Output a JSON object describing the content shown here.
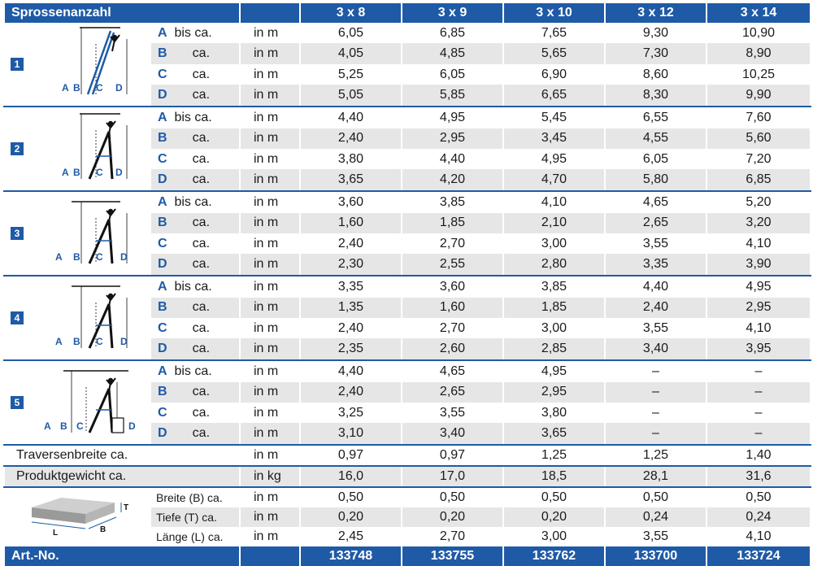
{
  "header": {
    "title": "Sprossenanzahl",
    "columns": [
      "3 x 8",
      "3 x 9",
      "3 x 10",
      "3 x 12",
      "3 x 14"
    ]
  },
  "groups": [
    {
      "badge": "1",
      "rows": [
        {
          "letter": "A",
          "label": " bis ca.",
          "unit": "in m",
          "values": [
            "6,05",
            "6,85",
            "7,65",
            "9,30",
            "10,90"
          ]
        },
        {
          "letter": "B",
          "label": "      ca.",
          "unit": "in m",
          "values": [
            "4,05",
            "4,85",
            "5,65",
            "7,30",
            "8,90"
          ]
        },
        {
          "letter": "C",
          "label": "      ca.",
          "unit": "in m",
          "values": [
            "5,25",
            "6,05",
            "6,90",
            "8,60",
            "10,25"
          ]
        },
        {
          "letter": "D",
          "label": "      ca.",
          "unit": "in m",
          "values": [
            "5,05",
            "5,85",
            "6,65",
            "8,30",
            "9,90"
          ]
        }
      ]
    },
    {
      "badge": "2",
      "rows": [
        {
          "letter": "A",
          "label": " bis ca.",
          "unit": "in m",
          "values": [
            "4,40",
            "4,95",
            "5,45",
            "6,55",
            "7,60"
          ]
        },
        {
          "letter": "B",
          "label": "      ca.",
          "unit": "in m",
          "values": [
            "2,40",
            "2,95",
            "3,45",
            "4,55",
            "5,60"
          ]
        },
        {
          "letter": "C",
          "label": "      ca.",
          "unit": "in m",
          "values": [
            "3,80",
            "4,40",
            "4,95",
            "6,05",
            "7,20"
          ]
        },
        {
          "letter": "D",
          "label": "      ca.",
          "unit": "in m",
          "values": [
            "3,65",
            "4,20",
            "4,70",
            "5,80",
            "6,85"
          ]
        }
      ]
    },
    {
      "badge": "3",
      "rows": [
        {
          "letter": "A",
          "label": " bis ca.",
          "unit": "in m",
          "values": [
            "3,60",
            "3,85",
            "4,10",
            "4,65",
            "5,20"
          ]
        },
        {
          "letter": "B",
          "label": "      ca.",
          "unit": "in m",
          "values": [
            "1,60",
            "1,85",
            "2,10",
            "2,65",
            "3,20"
          ]
        },
        {
          "letter": "C",
          "label": "      ca.",
          "unit": "in m",
          "values": [
            "2,40",
            "2,70",
            "3,00",
            "3,55",
            "4,10"
          ]
        },
        {
          "letter": "D",
          "label": "      ca.",
          "unit": "in m",
          "values": [
            "2,30",
            "2,55",
            "2,80",
            "3,35",
            "3,90"
          ]
        }
      ]
    },
    {
      "badge": "4",
      "rows": [
        {
          "letter": "A",
          "label": " bis ca.",
          "unit": "in m",
          "values": [
            "3,35",
            "3,60",
            "3,85",
            "4,40",
            "4,95"
          ]
        },
        {
          "letter": "B",
          "label": "      ca.",
          "unit": "in m",
          "values": [
            "1,35",
            "1,60",
            "1,85",
            "2,40",
            "2,95"
          ]
        },
        {
          "letter": "C",
          "label": "      ca.",
          "unit": "in m",
          "values": [
            "2,40",
            "2,70",
            "3,00",
            "3,55",
            "4,10"
          ]
        },
        {
          "letter": "D",
          "label": "      ca.",
          "unit": "in m",
          "values": [
            "2,35",
            "2,60",
            "2,85",
            "3,40",
            "3,95"
          ]
        }
      ]
    },
    {
      "badge": "5",
      "rows": [
        {
          "letter": "A",
          "label": " bis ca.",
          "unit": "in m",
          "values": [
            "4,40",
            "4,65",
            "4,95",
            "–",
            "–"
          ]
        },
        {
          "letter": "B",
          "label": "      ca.",
          "unit": "in m",
          "values": [
            "2,40",
            "2,65",
            "2,95",
            "–",
            "–"
          ]
        },
        {
          "letter": "C",
          "label": "      ca.",
          "unit": "in m",
          "values": [
            "3,25",
            "3,55",
            "3,80",
            "–",
            "–"
          ]
        },
        {
          "letter": "D",
          "label": "      ca.",
          "unit": "in m",
          "values": [
            "3,10",
            "3,40",
            "3,65",
            "–",
            "–"
          ]
        }
      ]
    }
  ],
  "traverse": {
    "label": "Traversenbreite ca.",
    "unit": "in m",
    "values": [
      "0,97",
      "0,97",
      "1,25",
      "1,25",
      "1,40"
    ]
  },
  "weight": {
    "label": "Produktgewicht ca.",
    "unit": "in kg",
    "values": [
      "16,0",
      "17,0",
      "18,5",
      "28,1",
      "31,6"
    ]
  },
  "package": {
    "dim_letters": {
      "t": "T",
      "l": "L",
      "b": "B"
    },
    "rows": [
      {
        "label": "Breite (B) ca.",
        "unit": "in m",
        "values": [
          "0,50",
          "0,50",
          "0,50",
          "0,50",
          "0,50"
        ]
      },
      {
        "label": "Tiefe (T) ca.",
        "unit": "in m",
        "values": [
          "0,20",
          "0,20",
          "0,20",
          "0,24",
          "0,24"
        ]
      },
      {
        "label": "Länge (L) ca.",
        "unit": "in m",
        "values": [
          "2,45",
          "2,70",
          "3,00",
          "3,55",
          "4,10"
        ]
      }
    ]
  },
  "footer": {
    "label": "Art.-No.",
    "values": [
      "133748",
      "133755",
      "133762",
      "133700",
      "133724"
    ]
  },
  "diagram_letters": [
    "A",
    "B",
    "C",
    "D"
  ],
  "colors": {
    "accent": "#1f5aa6",
    "stripe": "#e6e6e6"
  }
}
